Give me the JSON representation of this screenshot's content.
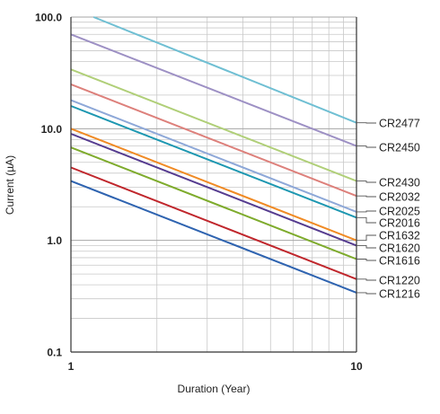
{
  "chart_data": {
    "type": "line",
    "title": "",
    "xlabel": "Duration (Year)",
    "ylabel": "Current (µA)",
    "xscale": "log",
    "yscale": "log",
    "xlim": [
      1,
      10
    ],
    "ylim": [
      0.1,
      100
    ],
    "x_ticks": [
      1,
      10
    ],
    "x_tick_labels": [
      "1",
      "10"
    ],
    "y_ticks": [
      0.1,
      1,
      10,
      100
    ],
    "y_tick_labels": [
      "0.1",
      "1.0",
      "10.0",
      "100.0"
    ],
    "grid": true,
    "legend": "right end of each line",
    "series": [
      {
        "name": "CR2477",
        "color": "#6fbfd3",
        "x": [
          1.2,
          10
        ],
        "y": [
          100,
          11.3
        ]
      },
      {
        "name": "CR2450",
        "color": "#9d90c4",
        "x": [
          1,
          10
        ],
        "y": [
          70,
          7.0
        ]
      },
      {
        "name": "CR2430",
        "color": "#b0cf78",
        "x": [
          1,
          10
        ],
        "y": [
          34,
          3.4
        ]
      },
      {
        "name": "CR2032",
        "color": "#dd807b",
        "x": [
          1,
          10
        ],
        "y": [
          25,
          2.5
        ]
      },
      {
        "name": "CR2025",
        "color": "#8ea8d8",
        "x": [
          1,
          10
        ],
        "y": [
          18,
          1.8
        ]
      },
      {
        "name": "CR2016",
        "color": "#1d97b1",
        "x": [
          1,
          10
        ],
        "y": [
          16,
          1.6
        ]
      },
      {
        "name": "CR1632",
        "color": "#f08a24",
        "x": [
          1,
          10
        ],
        "y": [
          10,
          1.0
        ]
      },
      {
        "name": "CR1620",
        "color": "#553b8f",
        "x": [
          1,
          10
        ],
        "y": [
          9,
          0.9
        ]
      },
      {
        "name": "CR1616",
        "color": "#7eab2c",
        "x": [
          1,
          10
        ],
        "y": [
          6.8,
          0.68
        ]
      },
      {
        "name": "CR1220",
        "color": "#c0262c",
        "x": [
          1,
          10
        ],
        "y": [
          4.5,
          0.45
        ]
      },
      {
        "name": "CR1216",
        "color": "#2e63b0",
        "x": [
          1,
          10
        ],
        "y": [
          3.4,
          0.34
        ]
      }
    ]
  }
}
